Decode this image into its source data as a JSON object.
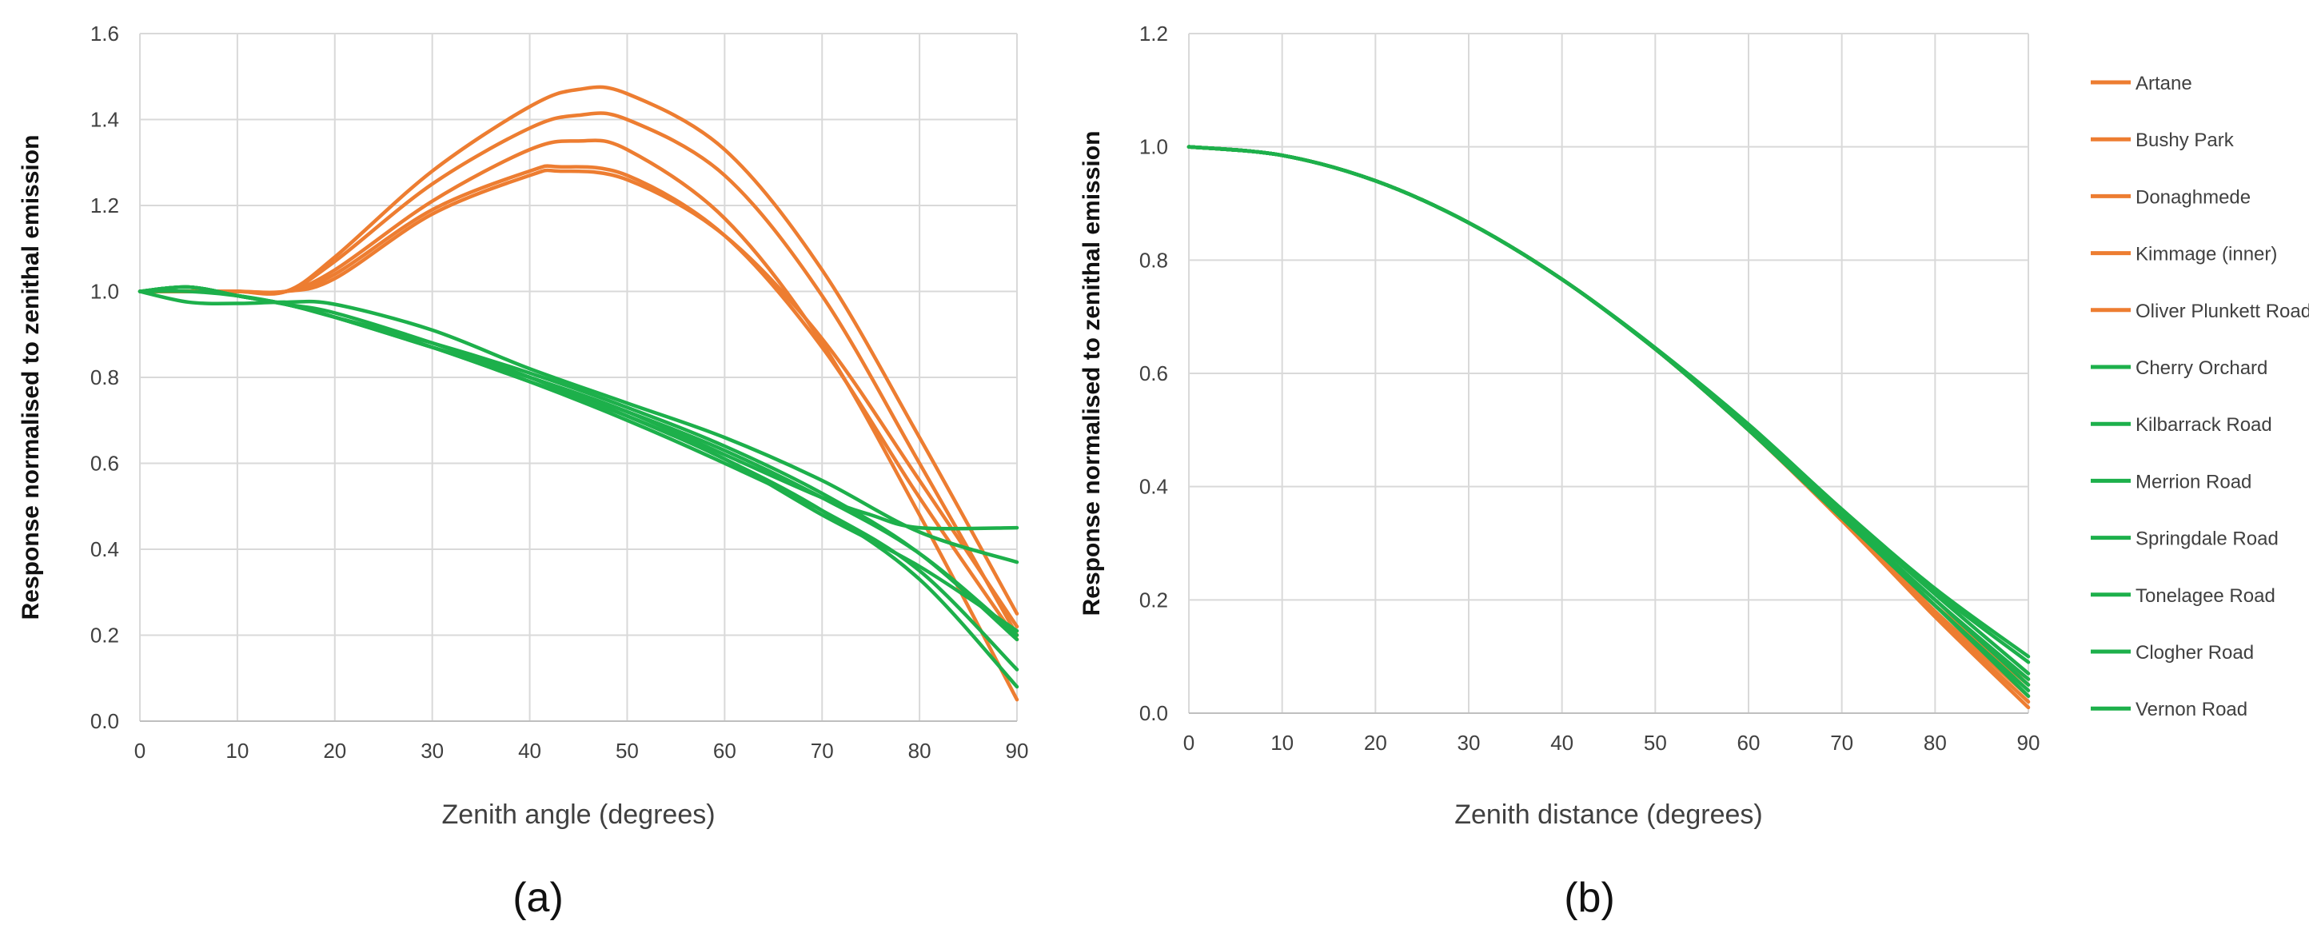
{
  "colors": {
    "orange": "#ED7D31",
    "green": "#1DB04B"
  },
  "legend": {
    "entries": [
      {
        "name": "Artane",
        "color": "#ED7D31"
      },
      {
        "name": "Bushy Park",
        "color": "#ED7D31"
      },
      {
        "name": "Donaghmede",
        "color": "#ED7D31"
      },
      {
        "name": "Kimmage (inner)",
        "color": "#ED7D31"
      },
      {
        "name": "Oliver Plunkett Road",
        "color": "#ED7D31"
      },
      {
        "name": "Cherry Orchard",
        "color": "#1DB04B"
      },
      {
        "name": "Kilbarrack Road",
        "color": "#1DB04B"
      },
      {
        "name": "Merrion Road",
        "color": "#1DB04B"
      },
      {
        "name": "Springdale Road",
        "color": "#1DB04B"
      },
      {
        "name": "Tonelagee Road",
        "color": "#1DB04B"
      },
      {
        "name": "Clogher Road",
        "color": "#1DB04B"
      },
      {
        "name": "Vernon Road",
        "color": "#1DB04B"
      }
    ]
  },
  "chart_data": [
    {
      "type": "line",
      "panel_label": "(a)",
      "xlabel": "Zenith angle (degrees)",
      "ylabel": "Response normalised to zenithal emission",
      "xlim": [
        0,
        90
      ],
      "ylim": [
        0,
        1.6
      ],
      "xticks": [
        "0",
        "10",
        "20",
        "30",
        "40",
        "50",
        "60",
        "70",
        "80",
        "90"
      ],
      "yticks": [
        "0.0",
        "0.2",
        "0.4",
        "0.6",
        "0.8",
        "1.0",
        "1.2",
        "1.4",
        "1.6"
      ],
      "grid": true,
      "series": [
        {
          "name": "Artane",
          "color": "#ED7D31",
          "x": [
            0,
            5,
            10,
            15,
            20,
            30,
            40,
            45,
            50,
            60,
            70,
            80,
            90
          ],
          "y": [
            1.0,
            1.0,
            1.0,
            1.0,
            1.08,
            1.28,
            1.43,
            1.47,
            1.46,
            1.33,
            1.05,
            0.66,
            0.25
          ]
        },
        {
          "name": "Bushy Park",
          "color": "#ED7D31",
          "x": [
            0,
            5,
            10,
            15,
            20,
            30,
            40,
            45,
            50,
            60,
            70,
            80,
            90
          ],
          "y": [
            1.0,
            1.0,
            1.0,
            1.0,
            1.07,
            1.25,
            1.38,
            1.41,
            1.4,
            1.27,
            0.99,
            0.6,
            0.2
          ]
        },
        {
          "name": "Donaghmede",
          "color": "#ED7D31",
          "x": [
            0,
            5,
            10,
            15,
            20,
            30,
            40,
            45,
            50,
            60,
            70,
            80,
            90
          ],
          "y": [
            1.0,
            1.0,
            1.0,
            1.0,
            1.05,
            1.21,
            1.33,
            1.35,
            1.33,
            1.17,
            0.88,
            0.48,
            0.05
          ]
        },
        {
          "name": "Kimmage (inner)",
          "color": "#ED7D31",
          "x": [
            0,
            5,
            10,
            15,
            20,
            30,
            40,
            43,
            50,
            60,
            70,
            80,
            90
          ],
          "y": [
            1.0,
            1.0,
            1.0,
            1.0,
            1.04,
            1.19,
            1.28,
            1.29,
            1.27,
            1.13,
            0.87,
            0.52,
            0.19
          ]
        },
        {
          "name": "Oliver Plunkett Road",
          "color": "#ED7D31",
          "x": [
            0,
            5,
            10,
            15,
            20,
            30,
            40,
            43,
            50,
            60,
            70,
            80,
            90
          ],
          "y": [
            1.0,
            1.0,
            1.0,
            1.0,
            1.03,
            1.18,
            1.27,
            1.28,
            1.26,
            1.13,
            0.89,
            0.56,
            0.22
          ]
        },
        {
          "name": "Cherry Orchard",
          "color": "#1DB04B",
          "x": [
            0,
            5,
            10,
            15,
            20,
            30,
            40,
            50,
            60,
            70,
            75,
            80,
            90
          ],
          "y": [
            1.0,
            1.01,
            0.99,
            0.97,
            0.94,
            0.87,
            0.8,
            0.72,
            0.62,
            0.52,
            0.48,
            0.45,
            0.45
          ]
        },
        {
          "name": "Kilbarrack Road",
          "color": "#1DB04B",
          "x": [
            0,
            5,
            10,
            15,
            20,
            30,
            40,
            50,
            60,
            70,
            80,
            90
          ],
          "y": [
            1.0,
            0.975,
            0.972,
            0.975,
            0.97,
            0.91,
            0.82,
            0.74,
            0.66,
            0.56,
            0.44,
            0.37
          ]
        },
        {
          "name": "Merrion Road",
          "color": "#1DB04B",
          "x": [
            0,
            5,
            10,
            15,
            20,
            30,
            40,
            50,
            60,
            70,
            80,
            90
          ],
          "y": [
            1.0,
            1.0,
            0.99,
            0.97,
            0.94,
            0.88,
            0.81,
            0.73,
            0.64,
            0.53,
            0.39,
            0.19
          ]
        },
        {
          "name": "Springdale Road",
          "color": "#1DB04B",
          "x": [
            0,
            5,
            10,
            15,
            20,
            30,
            40,
            50,
            60,
            70,
            80,
            90
          ],
          "y": [
            1.0,
            1.01,
            0.99,
            0.97,
            0.95,
            0.88,
            0.8,
            0.71,
            0.61,
            0.49,
            0.33,
            0.08
          ]
        },
        {
          "name": "Tonelagee Road",
          "color": "#1DB04B",
          "x": [
            0,
            5,
            10,
            15,
            20,
            30,
            40,
            50,
            60,
            70,
            80,
            90
          ],
          "y": [
            1.0,
            1.01,
            0.99,
            0.97,
            0.94,
            0.87,
            0.79,
            0.71,
            0.61,
            0.48,
            0.36,
            0.21
          ]
        },
        {
          "name": "Clogher Road",
          "color": "#1DB04B",
          "x": [
            0,
            5,
            10,
            15,
            20,
            30,
            40,
            50,
            60,
            70,
            80,
            90
          ],
          "y": [
            1.0,
            1.01,
            0.99,
            0.97,
            0.94,
            0.87,
            0.79,
            0.7,
            0.6,
            0.49,
            0.35,
            0.12
          ]
        },
        {
          "name": "Vernon Road",
          "color": "#1DB04B",
          "x": [
            0,
            5,
            10,
            15,
            20,
            30,
            40,
            50,
            60,
            70,
            80,
            90
          ],
          "y": [
            1.0,
            1.01,
            0.99,
            0.97,
            0.94,
            0.87,
            0.8,
            0.72,
            0.63,
            0.52,
            0.39,
            0.2
          ]
        }
      ]
    },
    {
      "type": "line",
      "panel_label": "(b)",
      "xlabel": "Zenith distance (degrees)",
      "ylabel": "Response normalised to zenithal emission",
      "xlim": [
        0,
        90
      ],
      "ylim": [
        0,
        1.2
      ],
      "xticks": [
        "0",
        "10",
        "20",
        "30",
        "40",
        "50",
        "60",
        "70",
        "80",
        "90"
      ],
      "yticks": [
        "0.0",
        "0.2",
        "0.4",
        "0.6",
        "0.8",
        "1.0",
        "1.2"
      ],
      "grid": true,
      "series": [
        {
          "name": "Artane",
          "color": "#ED7D31",
          "x": [
            0,
            10,
            20,
            30,
            40,
            50,
            60,
            70,
            80,
            90
          ],
          "y": [
            1.0,
            0.985,
            0.94,
            0.866,
            0.766,
            0.643,
            0.5,
            0.34,
            0.17,
            0.01
          ]
        },
        {
          "name": "Bushy Park",
          "color": "#ED7D31",
          "x": [
            0,
            10,
            20,
            30,
            40,
            50,
            60,
            70,
            80,
            90
          ],
          "y": [
            1.0,
            0.985,
            0.94,
            0.866,
            0.766,
            0.643,
            0.5,
            0.342,
            0.18,
            0.03
          ]
        },
        {
          "name": "Donaghmede",
          "color": "#ED7D31",
          "x": [
            0,
            10,
            20,
            30,
            40,
            50,
            60,
            70,
            80,
            90
          ],
          "y": [
            1.0,
            0.985,
            0.94,
            0.866,
            0.766,
            0.643,
            0.5,
            0.342,
            0.174,
            0.02
          ]
        },
        {
          "name": "Kimmage (inner)",
          "color": "#ED7D31",
          "x": [
            0,
            10,
            20,
            30,
            40,
            50,
            60,
            70,
            80,
            90
          ],
          "y": [
            1.0,
            0.985,
            0.94,
            0.866,
            0.766,
            0.643,
            0.5,
            0.345,
            0.19,
            0.05
          ]
        },
        {
          "name": "Oliver Plunkett Road",
          "color": "#ED7D31",
          "x": [
            0,
            10,
            20,
            30,
            40,
            50,
            60,
            70,
            80,
            90
          ],
          "y": [
            1.0,
            0.985,
            0.94,
            0.866,
            0.766,
            0.643,
            0.5,
            0.345,
            0.19,
            0.06
          ]
        },
        {
          "name": "Cherry Orchard",
          "color": "#1DB04B",
          "x": [
            0,
            10,
            20,
            30,
            40,
            50,
            60,
            70,
            80,
            90
          ],
          "y": [
            1.0,
            0.985,
            0.94,
            0.866,
            0.766,
            0.645,
            0.51,
            0.36,
            0.22,
            0.1
          ]
        },
        {
          "name": "Kilbarrack Road",
          "color": "#1DB04B",
          "x": [
            0,
            10,
            20,
            30,
            40,
            50,
            60,
            70,
            80,
            90
          ],
          "y": [
            1.0,
            0.985,
            0.94,
            0.866,
            0.766,
            0.645,
            0.508,
            0.36,
            0.215,
            0.09
          ]
        },
        {
          "name": "Merrion Road",
          "color": "#1DB04B",
          "x": [
            0,
            10,
            20,
            30,
            40,
            50,
            60,
            70,
            80,
            90
          ],
          "y": [
            1.0,
            0.985,
            0.94,
            0.866,
            0.766,
            0.643,
            0.503,
            0.35,
            0.2,
            0.06
          ]
        },
        {
          "name": "Springdale Road",
          "color": "#1DB04B",
          "x": [
            0,
            10,
            20,
            30,
            40,
            50,
            60,
            70,
            80,
            90
          ],
          "y": [
            1.0,
            0.985,
            0.94,
            0.866,
            0.766,
            0.643,
            0.5,
            0.345,
            0.19,
            0.04
          ]
        },
        {
          "name": "Tonelagee Road",
          "color": "#1DB04B",
          "x": [
            0,
            10,
            20,
            30,
            40,
            50,
            60,
            70,
            80,
            90
          ],
          "y": [
            1.0,
            0.985,
            0.94,
            0.866,
            0.766,
            0.643,
            0.502,
            0.348,
            0.2,
            0.05
          ]
        },
        {
          "name": "Clogher Road",
          "color": "#1DB04B",
          "x": [
            0,
            10,
            20,
            30,
            40,
            50,
            60,
            70,
            80,
            90
          ],
          "y": [
            1.0,
            0.985,
            0.94,
            0.866,
            0.766,
            0.643,
            0.5,
            0.345,
            0.19,
            0.03
          ]
        },
        {
          "name": "Vernon Road",
          "color": "#1DB04B",
          "x": [
            0,
            10,
            20,
            30,
            40,
            50,
            60,
            70,
            80,
            90
          ],
          "y": [
            1.0,
            0.985,
            0.94,
            0.866,
            0.766,
            0.643,
            0.505,
            0.355,
            0.21,
            0.07
          ]
        }
      ]
    }
  ]
}
